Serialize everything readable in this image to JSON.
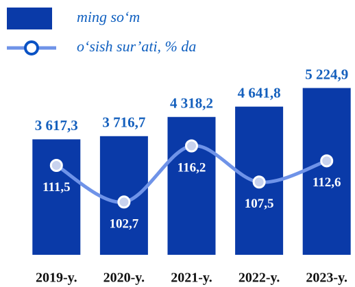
{
  "chart_data": {
    "type": "bar",
    "categories": [
      "2019-y.",
      "2020-y.",
      "2021-y.",
      "2022-y.",
      "2023-y."
    ],
    "series": [
      {
        "name": "ming so‘m",
        "type": "bar",
        "color": "#0a3aa8",
        "values": [
          3617.3,
          3716.7,
          4318.2,
          4641.8,
          5224.9
        ],
        "value_labels": [
          "3 617,3",
          "3 716,7",
          "4 318,2",
          "4 641,8",
          "5 224,9"
        ]
      },
      {
        "name": "o‘sish sur’ati, % da",
        "type": "line",
        "axis": "y2",
        "color": "#6f93e8",
        "values": [
          111.5,
          102.7,
          116.2,
          107.5,
          112.6
        ],
        "value_labels": [
          "111,5",
          "102,7",
          "116,2",
          "107,5",
          "112,6"
        ]
      }
    ],
    "ylim": [
      0,
      5600
    ],
    "y2lim": [
      90,
      133
    ],
    "legend": "top-left"
  }
}
